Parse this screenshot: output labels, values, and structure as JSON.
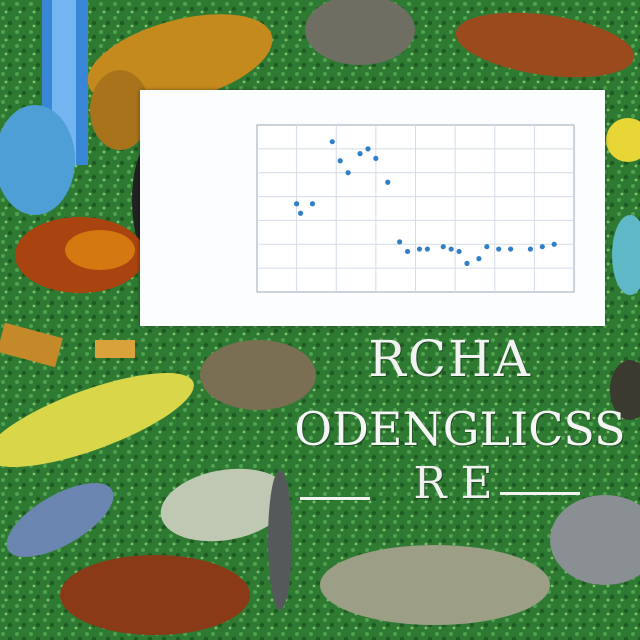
{
  "poster": {
    "line1": "RCHA",
    "line2": "ODENGLICSS",
    "line3": "RE"
  },
  "chart_data": {
    "type": "scatter",
    "title": "",
    "xlabel": "",
    "ylabel": "",
    "ylim": [
      0,
      7
    ],
    "xlim": [
      0,
      8
    ],
    "points": [
      {
        "x": 1.0,
        "y": 3.7
      },
      {
        "x": 1.1,
        "y": 3.3
      },
      {
        "x": 1.4,
        "y": 3.7
      },
      {
        "x": 1.9,
        "y": 6.3
      },
      {
        "x": 2.1,
        "y": 5.5
      },
      {
        "x": 2.3,
        "y": 5.0
      },
      {
        "x": 2.6,
        "y": 5.8
      },
      {
        "x": 2.8,
        "y": 6.0
      },
      {
        "x": 3.0,
        "y": 5.6
      },
      {
        "x": 3.3,
        "y": 4.6
      },
      {
        "x": 3.6,
        "y": 2.1
      },
      {
        "x": 3.8,
        "y": 1.7
      },
      {
        "x": 4.1,
        "y": 1.8
      },
      {
        "x": 4.3,
        "y": 1.8
      },
      {
        "x": 4.7,
        "y": 1.9
      },
      {
        "x": 4.9,
        "y": 1.8
      },
      {
        "x": 5.1,
        "y": 1.7
      },
      {
        "x": 5.3,
        "y": 1.2
      },
      {
        "x": 5.6,
        "y": 1.4
      },
      {
        "x": 5.8,
        "y": 1.9
      },
      {
        "x": 6.1,
        "y": 1.8
      },
      {
        "x": 6.4,
        "y": 1.8
      },
      {
        "x": 6.9,
        "y": 1.8
      },
      {
        "x": 7.2,
        "y": 1.9
      },
      {
        "x": 7.5,
        "y": 2.0
      }
    ],
    "grid": true,
    "point_color": "#2f7fc9"
  },
  "colors": {
    "background": "#2e7d32",
    "panel": "#fbfdff",
    "grid": "#d3dce6",
    "text": "#f2f2f2"
  }
}
